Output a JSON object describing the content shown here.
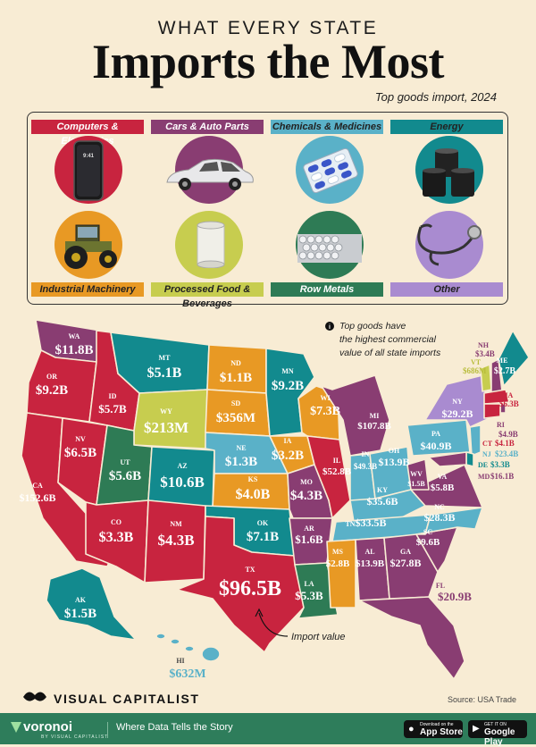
{
  "header": {
    "kicker": "WHAT EVERY STATE",
    "title": "Imports the Most",
    "subtitle": "Top goods import, 2024"
  },
  "legend": [
    {
      "key": "computers",
      "label": "Computers & Electronics",
      "color": "#c8243f"
    },
    {
      "key": "cars",
      "label": "Cars & Auto Parts",
      "color": "#893d72"
    },
    {
      "key": "chemicals",
      "label": "Chemicals & Medicines",
      "color": "#5ab1c8"
    },
    {
      "key": "energy",
      "label": "Energy",
      "color": "#128a8e"
    },
    {
      "key": "machinery",
      "label": "Industrial Machinery",
      "color": "#e89924"
    },
    {
      "key": "food",
      "label": "Processed Food & Beverages",
      "color": "#c7cd4f"
    },
    {
      "key": "metals",
      "label": "Row Metals",
      "color": "#2e7b55"
    },
    {
      "key": "other",
      "label": "Other",
      "color": "#a98bd0"
    }
  ],
  "phone_time": "9:41",
  "states": [
    {
      "code": "WA",
      "value": "$11.8B",
      "category": "cars"
    },
    {
      "code": "OR",
      "value": "$9.2B",
      "category": "computers"
    },
    {
      "code": "CA",
      "value": "$152.6B",
      "category": "computers"
    },
    {
      "code": "NV",
      "value": "$6.5B",
      "category": "computers"
    },
    {
      "code": "ID",
      "value": "$5.7B",
      "category": "computers"
    },
    {
      "code": "MT",
      "value": "$5.1B",
      "category": "energy"
    },
    {
      "code": "WY",
      "value": "$213M",
      "category": "food"
    },
    {
      "code": "UT",
      "value": "$5.6B",
      "category": "metals"
    },
    {
      "code": "AZ",
      "value": "$10.6B",
      "category": "computers"
    },
    {
      "code": "CO",
      "value": "$3.3B",
      "category": "energy"
    },
    {
      "code": "NM",
      "value": "$4.3B",
      "category": "computers"
    },
    {
      "code": "ND",
      "value": "$1.1B",
      "category": "machinery"
    },
    {
      "code": "SD",
      "value": "$356M",
      "category": "machinery"
    },
    {
      "code": "NE",
      "value": "$1.3B",
      "category": "chemicals"
    },
    {
      "code": "KS",
      "value": "$4.0B",
      "category": "machinery"
    },
    {
      "code": "OK",
      "value": "$7.1B",
      "category": "energy"
    },
    {
      "code": "TX",
      "value": "$96.5B",
      "category": "computers"
    },
    {
      "code": "MN",
      "value": "$9.2B",
      "category": "energy"
    },
    {
      "code": "IA",
      "value": "$3.2B",
      "category": "machinery"
    },
    {
      "code": "MO",
      "value": "$4.3B",
      "category": "cars"
    },
    {
      "code": "AR",
      "value": "$1.6B",
      "category": "cars"
    },
    {
      "code": "LA",
      "value": "$5.3B",
      "category": "metals"
    },
    {
      "code": "WI",
      "value": "$7.3B",
      "category": "machinery"
    },
    {
      "code": "IL",
      "value": "$52.8B",
      "category": "computers"
    },
    {
      "code": "MI",
      "value": "$107.8B",
      "category": "cars"
    },
    {
      "code": "IN",
      "value": "$49.3B",
      "category": "chemicals"
    },
    {
      "code": "OH",
      "value": "$13.9B",
      "category": "chemicals"
    },
    {
      "code": "KY",
      "value": "$35.6B",
      "category": "chemicals"
    },
    {
      "code": "TN",
      "value": "$33.5B",
      "category": "chemicals"
    },
    {
      "code": "MS",
      "value": "$2.8B",
      "category": "machinery"
    },
    {
      "code": "AL",
      "value": "$13.9B",
      "category": "cars"
    },
    {
      "code": "GA",
      "value": "$27.8B",
      "category": "cars"
    },
    {
      "code": "FL",
      "value": "$20.9B",
      "category": "cars"
    },
    {
      "code": "SC",
      "value": "$9.6B",
      "category": "cars"
    },
    {
      "code": "NC",
      "value": "$28.3B",
      "category": "chemicals"
    },
    {
      "code": "VA",
      "value": "$5.8B",
      "category": "cars"
    },
    {
      "code": "WV",
      "value": "$1.5B",
      "category": "cars"
    },
    {
      "code": "PA",
      "value": "$40.9B",
      "category": "chemicals"
    },
    {
      "code": "NY",
      "value": "$29.2B",
      "category": "other"
    },
    {
      "code": "VT",
      "value": "$686M",
      "category": "food"
    },
    {
      "code": "NH",
      "value": "$3.4B",
      "category": "cars"
    },
    {
      "code": "ME",
      "value": "$2.7B",
      "category": "energy"
    },
    {
      "code": "MA",
      "value": "$6.3B",
      "category": "computers"
    },
    {
      "code": "RI",
      "value": "$4.9B",
      "category": "cars"
    },
    {
      "code": "CT",
      "value": "$4.1B",
      "category": "computers"
    },
    {
      "code": "NJ",
      "value": "$23.4B",
      "category": "chemicals"
    },
    {
      "code": "DE",
      "value": "$3.3B",
      "category": "energy"
    },
    {
      "code": "MD",
      "value": "$16.1B",
      "category": "cars"
    },
    {
      "code": "AK",
      "value": "$1.5B",
      "category": "energy"
    },
    {
      "code": "HI",
      "value": "$632M",
      "category": "chemicals"
    }
  ],
  "annotations": {
    "note": [
      "Top goods have",
      "the highest commercial",
      "value of all state imports"
    ],
    "note_icon": "info-icon",
    "import_value": "Import value"
  },
  "footer": {
    "brand": "VISUAL CAPITALIST",
    "source": "Source: USA Trade",
    "voronoi": "voronoi",
    "voronoi_sub": "BY VISUAL CAPITALIST",
    "tagline": "Where Data Tells the Story",
    "app_store_small": "Download on the",
    "app_store": "App Store",
    "google_play_small": "GET IT ON",
    "google_play": "Google Play"
  }
}
